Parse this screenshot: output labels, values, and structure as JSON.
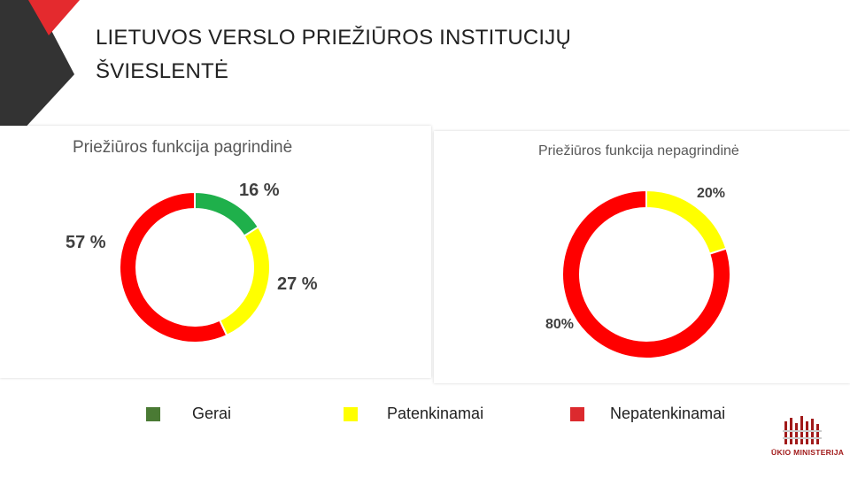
{
  "slide": {
    "title_line1": "LIETUVOS VERSLO PRIEŽIŪROS INSTITUCIJŲ",
    "title_line2": "ŠVIESLENTĖ"
  },
  "colors": {
    "deco_red": "#e42a2e",
    "deco_dark": "#333333",
    "gerai": "#4a7a34",
    "patenkinamai": "#ffff00",
    "nepatenkinamai": "#dc2a2e"
  },
  "legend": {
    "items": [
      {
        "label": "Gerai",
        "color": "#4a7a34"
      },
      {
        "label": "Patenkinamai",
        "color": "#ffff00"
      },
      {
        "label": "Nepatenkinamai",
        "color": "#dc2a2e"
      }
    ]
  },
  "logo": {
    "text": "ŪKIO MINISTERIJA"
  },
  "chart_data": [
    {
      "type": "pie",
      "title": "Priežiūros funkcija pagrindinė",
      "categories": [
        "Gerai",
        "Patenkinamai",
        "Nepatenkinamai"
      ],
      "values": [
        16,
        27,
        57
      ],
      "labels": [
        "16 %",
        "27 %",
        "57 %"
      ],
      "colors": [
        "#1fb04b",
        "#ffff00",
        "#ff0000"
      ],
      "donut": true,
      "legend": "bottom"
    },
    {
      "type": "pie",
      "title": "Priežiūros funkcija nepagrindinė",
      "categories": [
        "Patenkinamai",
        "Nepatenkinamai"
      ],
      "values": [
        20,
        80
      ],
      "labels": [
        "20%",
        "80%"
      ],
      "colors": [
        "#ffff00",
        "#ff0000"
      ],
      "donut": true,
      "legend": "bottom"
    }
  ]
}
